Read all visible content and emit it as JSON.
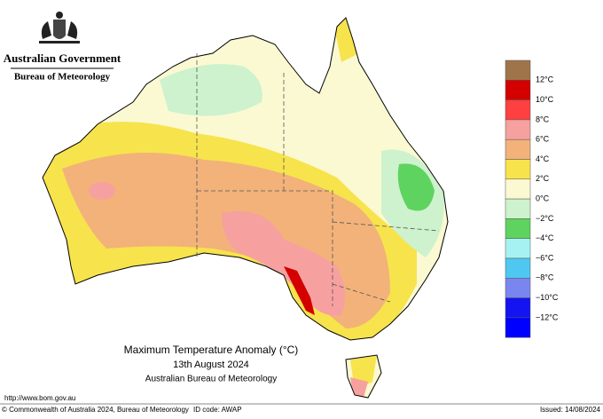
{
  "header": {
    "government": "Australian Government",
    "agency": "Bureau of Meteorology"
  },
  "map": {
    "title": "Maximum Temperature Anomaly (°C)",
    "date": "13th August 2024",
    "source": "Australian Bureau of Meteorology"
  },
  "legend": {
    "labels": [
      "12°C",
      "10°C",
      "8°C",
      "6°C",
      "4°C",
      "2°C",
      "0°C",
      "−2°C",
      "−4°C",
      "−6°C",
      "−8°C",
      "−10°C",
      "−12°C"
    ],
    "colors": [
      "#a0744a",
      "#d40000",
      "#ff4040",
      "#f7a0a0",
      "#f2b27a",
      "#f7e34c",
      "#fbf9d2",
      "#cdf2cd",
      "#5fd35f",
      "#a6f2f2",
      "#4ec8f0",
      "#7a86f0",
      "#1414f0",
      "#0000ff"
    ]
  },
  "footer": {
    "url": "http://www.bom.gov.au",
    "copyright": "© Commonwealth of Australia 2024, Bureau of Meteorology",
    "id_code": "ID code: AWAP",
    "issued": "Issued: 14/08/2024"
  }
}
